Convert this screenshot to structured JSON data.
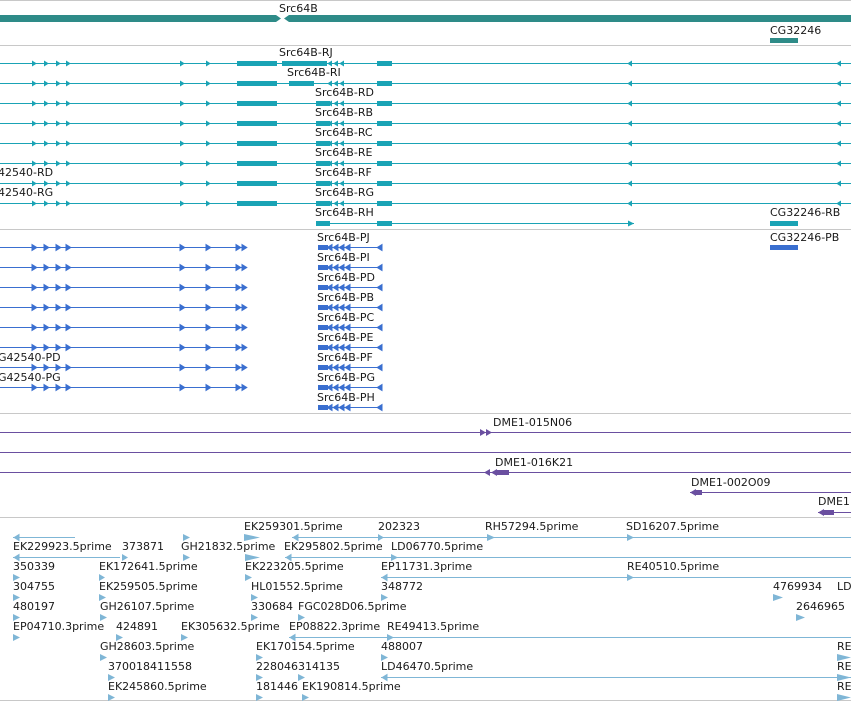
{
  "colors": {
    "gene": "#2e8b88",
    "transcript_rna": "#1aa3b5",
    "transcript_protein": "#3a6fd0",
    "clone": "#6a4fa0",
    "est": "#7fb6d6",
    "divider": "#c8c8c8"
  },
  "tracks": {
    "genes": {
      "src64b": "Src64B",
      "cg32246": "CG32246"
    },
    "transcripts": {
      "rj": "Src64B-RJ",
      "ri": "Src64B-RI",
      "rd": "Src64B-RD",
      "rb": "Src64B-RB",
      "rc": "Src64B-RC",
      "re": "Src64B-RE",
      "rf": "Src64B-RF",
      "rg": "Src64B-RG",
      "rh": "Src64B-RH",
      "cg42540_rd": "42540-RD",
      "cg42540_rg": "42540-RG",
      "cg32246_rb": "CG32246-RB"
    },
    "proteins": {
      "pj": "Src64B-PJ",
      "pi": "Src64B-PI",
      "pd": "Src64B-PD",
      "pb": "Src64B-PB",
      "pc": "Src64B-PC",
      "pe": "Src64B-PE",
      "pf": "Src64B-PF",
      "pg": "Src64B-PG",
      "ph": "Src64B-PH",
      "cg42540_pd": "G42540-PD",
      "cg42540_pg": "G42540-PG",
      "cg32246_pb": "CG32246-PB"
    },
    "clones": {
      "c1": "DME1-015N06",
      "c2": "DME1-016K21",
      "c3": "DME1-002O09",
      "c4": "DME1"
    },
    "ests": {
      "e01": "EK259301.5prime",
      "e02": "202323",
      "e03": "RH57294.5prime",
      "e04": "SD16207.5prime",
      "e05": "EK229923.5prime",
      "e06": "373871",
      "e07": "GH21832.5prime",
      "e08": "EK295802.5prime",
      "e09": "LD06770.5prime",
      "e10": "350339",
      "e11": "EK172641.5prime",
      "e12": "EK223205.5prime",
      "e13": "EP11731.3prime",
      "e14": "RE40510.5prime",
      "e15": "304755",
      "e16": "EK259505.5prime",
      "e17": "HL01552.5prime",
      "e18": "348772",
      "e19": "4769934",
      "e20": "LD",
      "e21": "480197",
      "e22": "GH26107.5prime",
      "e23": "330684",
      "e24": "FGC028D06.5prime",
      "e25": "2646965",
      "e26": "EP04710.3prime",
      "e27": "424891",
      "e28": "EK305632.5prime",
      "e29": "EP08822.3prime",
      "e30": "RE49413.5prime",
      "e31": "GH28603.5prime",
      "e32": "EK170154.5prime",
      "e33": "488007",
      "e34": "RE",
      "e35": "370018411558",
      "e36": "228046",
      "e37": "314135",
      "e38": "LD46470.5prime",
      "e39": "RE",
      "e40": "EK245860.5prime",
      "e41": "181446",
      "e42": "EK190814.5prime",
      "e43": "RE"
    }
  }
}
